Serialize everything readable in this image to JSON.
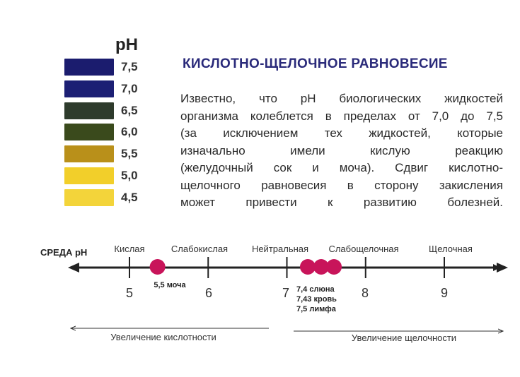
{
  "legend": {
    "title": "pH",
    "swatches": [
      {
        "label": "7,5",
        "color": "#1b1c6e"
      },
      {
        "label": "7,0",
        "color": "#1c1f74"
      },
      {
        "label": "6,5",
        "color": "#2e3b2c"
      },
      {
        "label": "6,0",
        "color": "#3a4a1c"
      },
      {
        "label": "5,5",
        "color": "#b9901a"
      },
      {
        "label": "5,0",
        "color": "#f2cf2a"
      },
      {
        "label": "4,5",
        "color": "#f3d43a"
      }
    ]
  },
  "heading": "КИСЛОТНО-ЩЕЛОЧНОЕ РАВНОВЕСИЕ",
  "paragraph": [
    "Известно, что  рН биологических жидкостей",
    "организма колеблется в пределах от 7,0 до 7,5",
    "(за исключением тех жидкостей, которые",
    "изначально имели кислую реакцию",
    "(желудочный сок и моча). Сдвиг кислотно-",
    "щелочного равновесия в сторону закисления",
    "может привести к развитию болезней."
  ],
  "scale": {
    "axis_label": "СРЕДА  рН",
    "zones": [
      "Кислая",
      "Слабокислая",
      "Нейтральная",
      "Слабощелочная",
      "Щелочная"
    ],
    "ticks": [
      "5",
      "6",
      "7",
      "8",
      "9"
    ],
    "markers": [
      {
        "value": 5.5,
        "label": "5,5 моча"
      },
      {
        "value": 7.4,
        "label": "7,4  слюна"
      },
      {
        "value": 7.43,
        "label": "7,43 кровь"
      },
      {
        "value": 7.5,
        "label": "7,5 лимфа"
      }
    ],
    "marker_color": "#c8145a",
    "arrow_left_label": "Увеличение кислотности",
    "arrow_right_label": "Увеличение щелочности"
  }
}
